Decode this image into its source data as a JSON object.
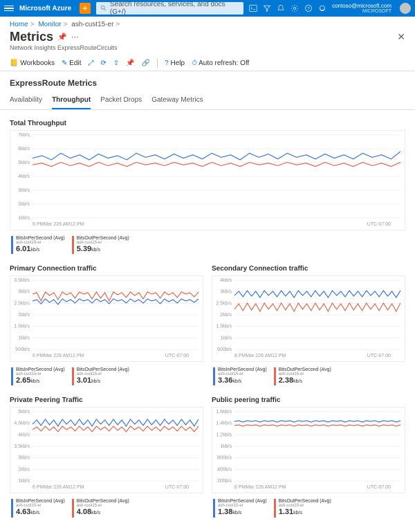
{
  "topbar": {
    "brand": "Microsoft Azure",
    "search_placeholder": "Search resources, services, and docs (G+/)",
    "user_email": "contoso@microsoft.com",
    "user_org": "MICROSOFT"
  },
  "breadcrumb": {
    "b1": "Home",
    "b2": "Monitor",
    "b3": "ash-cust15-er"
  },
  "page": {
    "title": "Metrics",
    "subtitle": "Network Insights ExpressRouteCircuits"
  },
  "toolbar": {
    "workbooks": "Workbooks",
    "edit": "Edit",
    "help": "Help",
    "autorefresh": "Auto refresh: Off"
  },
  "section_title": "ExpressRoute Metrics",
  "tabs": {
    "t1": "Availability",
    "t2": "Throughput",
    "t3": "Packet Drops",
    "t4": "Gateway Metrics"
  },
  "colors": {
    "series_in": "#3e78d6",
    "series_out": "#e2684f",
    "grid": "#f0f0f0",
    "axis_text": "#999999"
  },
  "charts": {
    "total": {
      "title": "Total Throughput",
      "height": 130,
      "y_labels": [
        "7kb/s",
        "6kb/s",
        "5kb/s",
        "4kb/s",
        "3kb/s",
        "2kb/s",
        "1kb/s"
      ],
      "x_labels": [
        "6 PM",
        "Mar 22",
        "6 AM",
        "12 PM"
      ],
      "tz": "UTC-07:00",
      "series_in_y": [
        0.28,
        0.25,
        0.3,
        0.22,
        0.28,
        0.24,
        0.3,
        0.23,
        0.28,
        0.25,
        0.3,
        0.22,
        0.27,
        0.24,
        0.29,
        0.23,
        0.28,
        0.24,
        0.29,
        0.22,
        0.27,
        0.24,
        0.3,
        0.22,
        0.27,
        0.23,
        0.29,
        0.22,
        0.27,
        0.24,
        0.29,
        0.23,
        0.28,
        0.24,
        0.29,
        0.22,
        0.27,
        0.24,
        0.29,
        0.2
      ],
      "series_out_y": [
        0.36,
        0.34,
        0.38,
        0.33,
        0.37,
        0.34,
        0.38,
        0.33,
        0.37,
        0.34,
        0.38,
        0.33,
        0.36,
        0.34,
        0.37,
        0.33,
        0.36,
        0.34,
        0.38,
        0.33,
        0.37,
        0.34,
        0.38,
        0.33,
        0.36,
        0.34,
        0.37,
        0.33,
        0.36,
        0.34,
        0.38,
        0.33,
        0.37,
        0.34,
        0.38,
        0.33,
        0.37,
        0.34,
        0.38,
        0.33
      ],
      "legend": {
        "in": {
          "name": "BitsInPerSecond (Avg)",
          "sub": "ash-cust15-er",
          "val": "6.01",
          "unit": "kb/s"
        },
        "out": {
          "name": "BitsOutPerSecond (Avg)",
          "sub": "ash-cust15-er",
          "val": "5.39",
          "unit": "kb/s"
        }
      }
    },
    "primary": {
      "title": "Primary Connection traffic",
      "height": 110,
      "y_labels": [
        "3.5kb/s",
        "3kb/s",
        "2.5kb/s",
        "2kb/s",
        "1.5kb/s",
        "1kb/s",
        "500b/s"
      ],
      "x_labels": [
        "6 PM",
        "Mar 22",
        "6 AM",
        "12 PM"
      ],
      "tz": "UTC-07:00",
      "series_in_y": [
        0.3,
        0.28,
        0.34,
        0.27,
        0.32,
        0.28,
        0.35,
        0.27,
        0.31,
        0.28,
        0.33,
        0.27,
        0.3,
        0.28,
        0.33,
        0.27,
        0.31,
        0.28,
        0.34,
        0.27,
        0.3,
        0.28,
        0.33,
        0.27,
        0.31,
        0.28,
        0.33,
        0.27,
        0.3,
        0.28,
        0.34,
        0.27,
        0.31,
        0.28,
        0.33,
        0.27,
        0.3,
        0.28,
        0.32,
        0.27
      ],
      "series_out_y": [
        0.2,
        0.18,
        0.3,
        0.17,
        0.22,
        0.18,
        0.28,
        0.17,
        0.21,
        0.18,
        0.26,
        0.17,
        0.2,
        0.18,
        0.27,
        0.17,
        0.26,
        0.18,
        0.3,
        0.17,
        0.21,
        0.18,
        0.25,
        0.17,
        0.22,
        0.18,
        0.27,
        0.17,
        0.2,
        0.18,
        0.26,
        0.17,
        0.21,
        0.18,
        0.25,
        0.17,
        0.2,
        0.18,
        0.24,
        0.17
      ],
      "legend": {
        "in": {
          "name": "BitsInPerSecond (Avg)",
          "sub": "ash-cust15-er",
          "val": "2.65",
          "unit": "kb/s"
        },
        "out": {
          "name": "BitsOutPerSecond (Avg)",
          "sub": "ash-cust15-er",
          "val": "3.01",
          "unit": "kb/s"
        }
      }
    },
    "secondary": {
      "title": "Secondary Connection traffic",
      "height": 110,
      "y_labels": [
        "4kb/s",
        "3kb/s",
        "2.5kb/s",
        "2kb/s",
        "1.5kb/s",
        "1kb/s",
        "500b/s"
      ],
      "x_labels": [
        "6 PM",
        "Mar 22",
        "6 AM",
        "12 PM"
      ],
      "tz": "UTC-07:00",
      "series_in_y": [
        0.22,
        0.16,
        0.24,
        0.15,
        0.23,
        0.16,
        0.25,
        0.15,
        0.22,
        0.16,
        0.24,
        0.15,
        0.23,
        0.16,
        0.25,
        0.15,
        0.22,
        0.16,
        0.24,
        0.15,
        0.23,
        0.16,
        0.25,
        0.15,
        0.22,
        0.16,
        0.24,
        0.15,
        0.23,
        0.16,
        0.24,
        0.15,
        0.22,
        0.16,
        0.24,
        0.15,
        0.23,
        0.16,
        0.25,
        0.15
      ],
      "series_out_y": [
        0.42,
        0.34,
        0.44,
        0.33,
        0.43,
        0.34,
        0.45,
        0.33,
        0.42,
        0.34,
        0.44,
        0.33,
        0.43,
        0.34,
        0.45,
        0.33,
        0.42,
        0.34,
        0.44,
        0.33,
        0.43,
        0.34,
        0.45,
        0.33,
        0.42,
        0.34,
        0.44,
        0.33,
        0.43,
        0.34,
        0.44,
        0.33,
        0.42,
        0.34,
        0.44,
        0.33,
        0.43,
        0.34,
        0.45,
        0.33
      ],
      "legend": {
        "in": {
          "name": "BitsInPerSecond (Avg)",
          "sub": "ash-cust15-er",
          "val": "3.36",
          "unit": "kb/s"
        },
        "out": {
          "name": "BitsOutPerSecond (Avg)",
          "sub": "ash-cust15-er",
          "val": "2.38",
          "unit": "kb/s"
        }
      }
    },
    "private": {
      "title": "Private Peering Traffic",
      "height": 110,
      "y_labels": [
        "5kb/s",
        "4.5kb/s",
        "4kb/s",
        "3.5kb/s",
        "3kb/s",
        "2kb/s",
        "1kb/s"
      ],
      "x_labels": [
        "6 PM",
        "Mar 22",
        "6 AM",
        "12 PM"
      ],
      "tz": "UTC-07:00",
      "series_in_y": [
        0.18,
        0.12,
        0.2,
        0.11,
        0.19,
        0.12,
        0.21,
        0.11,
        0.18,
        0.12,
        0.2,
        0.11,
        0.19,
        0.12,
        0.21,
        0.11,
        0.18,
        0.12,
        0.2,
        0.11,
        0.19,
        0.12,
        0.21,
        0.11,
        0.18,
        0.12,
        0.2,
        0.11,
        0.19,
        0.12,
        0.2,
        0.11,
        0.18,
        0.12,
        0.2,
        0.11,
        0.19,
        0.12,
        0.21,
        0.11
      ],
      "series_out_y": [
        0.26,
        0.22,
        0.28,
        0.21,
        0.27,
        0.22,
        0.29,
        0.21,
        0.26,
        0.22,
        0.28,
        0.21,
        0.27,
        0.22,
        0.29,
        0.21,
        0.26,
        0.22,
        0.28,
        0.21,
        0.27,
        0.22,
        0.29,
        0.21,
        0.26,
        0.22,
        0.28,
        0.21,
        0.27,
        0.22,
        0.28,
        0.21,
        0.26,
        0.22,
        0.28,
        0.21,
        0.27,
        0.22,
        0.29,
        0.21
      ],
      "legend": {
        "in": {
          "name": "BitsInPerSecond (Avg)",
          "sub": "ash-cust15-er",
          "val": "4.63",
          "unit": "kb/s"
        },
        "out": {
          "name": "BitsOutPerSecond (Avg)",
          "sub": "ash-cust15-er",
          "val": "4.08",
          "unit": "kb/s"
        }
      }
    },
    "public": {
      "title": "Public peering traffic",
      "height": 110,
      "y_labels": [
        "1.6kb/s",
        "1.4kb/s",
        "1.2kb/s",
        "1kb/s",
        "800b/s",
        "400b/s",
        "200b/s"
      ],
      "x_labels": [
        "6 PM",
        "Mar 22",
        "6 AM",
        "12 PM"
      ],
      "tz": "UTC-07:00",
      "series_in_y": [
        0.14,
        0.13,
        0.15,
        0.13,
        0.14,
        0.13,
        0.15,
        0.13,
        0.14,
        0.13,
        0.15,
        0.13,
        0.14,
        0.13,
        0.15,
        0.13,
        0.14,
        0.13,
        0.15,
        0.13,
        0.14,
        0.13,
        0.15,
        0.13,
        0.14,
        0.13,
        0.15,
        0.13,
        0.14,
        0.13,
        0.15,
        0.13,
        0.14,
        0.13,
        0.15,
        0.13,
        0.14,
        0.13,
        0.15,
        0.13
      ],
      "series_out_y": [
        0.2,
        0.19,
        0.21,
        0.19,
        0.2,
        0.19,
        0.21,
        0.19,
        0.2,
        0.19,
        0.21,
        0.19,
        0.2,
        0.19,
        0.21,
        0.19,
        0.2,
        0.19,
        0.21,
        0.19,
        0.2,
        0.19,
        0.21,
        0.19,
        0.2,
        0.19,
        0.21,
        0.19,
        0.2,
        0.19,
        0.21,
        0.19,
        0.2,
        0.19,
        0.21,
        0.19,
        0.2,
        0.19,
        0.21,
        0.19
      ],
      "legend": {
        "in": {
          "name": "BitsInPerSecond (Avg)",
          "sub": "ash-cust15-er",
          "val": "1.38",
          "unit": "kb/s"
        },
        "out": {
          "name": "BitsOutPerSecond (Avg)",
          "sub": "ash-cust15-er",
          "val": "1.31",
          "unit": "kb/s"
        }
      }
    }
  }
}
